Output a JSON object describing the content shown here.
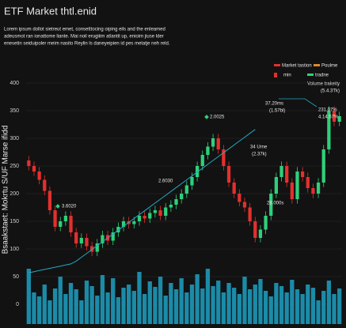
{
  "chart_data": {
    "type": "candlestick",
    "title": "ETF Market thtl.enid",
    "subtitle": [
      "Lorem ipsum dollot sietreut emet, consetttocing oiping eils and the enleamed",
      "adeusmot ran ionattome liante. Mai noil erugiiim atlantit up, enioim jiuse lder",
      "enesetin seiduipoler meim nasito Reylin ls daneyeipien id pes melatje neh reld."
    ],
    "ylabel": "Bsaakstaet: Mokrtu S/UF Marse ifidd",
    "legend": [
      "Market tastion",
      "Poulme",
      "min",
      "tradne",
      "Volume trakeity",
      "(5.4.3Tk)"
    ],
    "annotations": [
      "3.6020",
      "2.0025",
      "2.6030",
      "37.20ms",
      "(1.57bl)",
      "34 Urne",
      "(2.37k)",
      "28.000s",
      "231.07%",
      "4.14.57%"
    ],
    "ylim": [
      0,
      400
    ],
    "yticks": [
      0,
      50,
      100,
      150,
      200,
      250,
      300,
      350,
      400
    ],
    "up_color": "#2fd07a",
    "down_color": "#e3302e",
    "volume_color": "#1b8ba8",
    "trend_color": "#23a9c2",
    "open": [
      260,
      250,
      240,
      225,
      205,
      170,
      140,
      150,
      160,
      130,
      110,
      120,
      105,
      95,
      110,
      125,
      115,
      130,
      140,
      150,
      145,
      150,
      160,
      155,
      165,
      170,
      160,
      175,
      180,
      190,
      200,
      215,
      230,
      250,
      270,
      285,
      300,
      280,
      250,
      220,
      200,
      185,
      175,
      150,
      120,
      135,
      160,
      200,
      230,
      250,
      220,
      190,
      240,
      230,
      210,
      200,
      220,
      280,
      350,
      330
    ],
    "high": [
      268,
      258,
      248,
      233,
      213,
      178,
      158,
      168,
      168,
      138,
      128,
      128,
      113,
      118,
      133,
      133,
      138,
      148,
      158,
      158,
      158,
      168,
      168,
      173,
      178,
      178,
      183,
      188,
      198,
      208,
      223,
      238,
      258,
      278,
      293,
      308,
      308,
      288,
      258,
      228,
      208,
      193,
      183,
      158,
      143,
      168,
      208,
      238,
      258,
      258,
      228,
      248,
      248,
      238,
      218,
      228,
      288,
      358,
      358,
      348
    ],
    "low": [
      242,
      232,
      217,
      197,
      162,
      132,
      132,
      142,
      122,
      102,
      102,
      97,
      87,
      87,
      102,
      107,
      107,
      122,
      132,
      137,
      137,
      142,
      147,
      147,
      157,
      152,
      152,
      167,
      172,
      182,
      192,
      207,
      222,
      242,
      262,
      277,
      272,
      242,
      212,
      192,
      177,
      167,
      142,
      112,
      112,
      127,
      152,
      192,
      222,
      212,
      182,
      182,
      222,
      202,
      192,
      192,
      212,
      272,
      322,
      322
    ],
    "close": [
      250,
      240,
      225,
      205,
      170,
      140,
      150,
      160,
      130,
      110,
      120,
      105,
      95,
      110,
      125,
      115,
      130,
      140,
      150,
      145,
      150,
      160,
      155,
      165,
      170,
      160,
      175,
      180,
      190,
      200,
      215,
      230,
      250,
      270,
      285,
      300,
      280,
      250,
      220,
      200,
      185,
      175,
      150,
      120,
      135,
      160,
      200,
      230,
      250,
      220,
      190,
      240,
      230,
      210,
      200,
      220,
      280,
      350,
      330,
      340
    ],
    "volume": [
      70,
      40,
      35,
      50,
      30,
      45,
      60,
      38,
      52,
      44,
      30,
      55,
      48,
      36,
      62,
      40,
      58,
      34,
      46,
      50,
      42,
      66,
      38,
      54,
      47,
      60,
      36,
      52,
      44,
      58,
      40,
      50,
      63,
      45,
      70,
      48,
      55,
      40,
      52,
      46,
      38,
      60,
      44,
      50,
      57,
      42,
      35,
      52,
      48,
      40,
      56,
      44,
      38,
      50,
      46,
      30,
      42,
      55,
      38,
      45
    ],
    "trend": [
      57,
      59,
      61,
      63,
      65,
      67,
      69,
      71,
      73,
      78,
      85,
      92,
      99,
      106,
      113,
      120,
      127,
      134,
      141,
      148,
      155,
      162,
      169,
      176,
      183,
      190,
      197,
      204,
      211,
      218,
      225,
      232,
      239,
      246,
      253,
      260,
      267,
      274,
      281,
      288,
      295,
      302,
      309,
      316,
      null,
      null,
      null,
      null,
      null,
      null,
      null,
      null,
      null,
      null,
      null,
      null,
      null,
      null,
      null,
      null
    ]
  }
}
